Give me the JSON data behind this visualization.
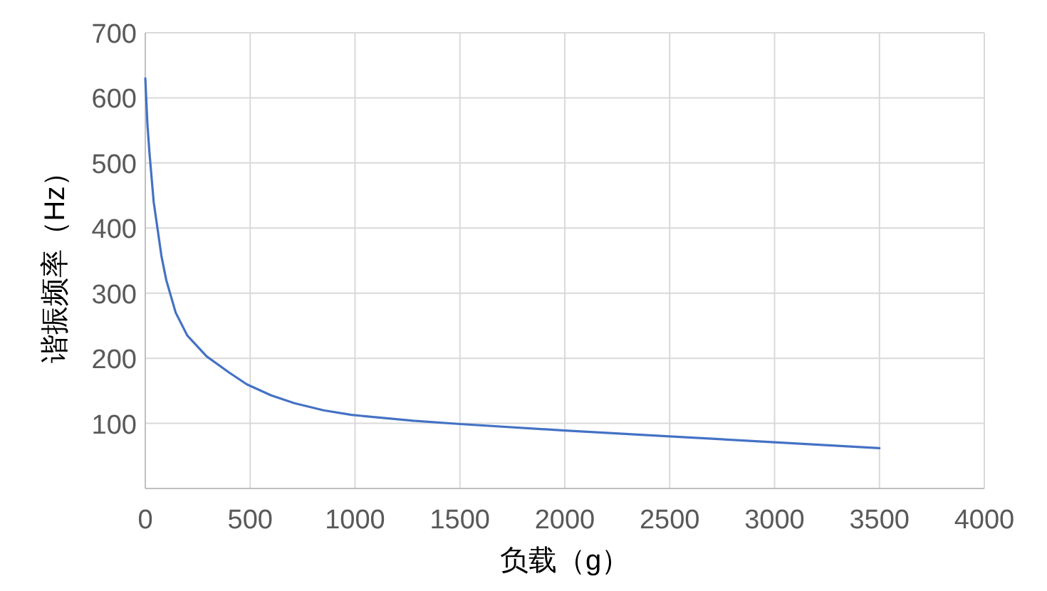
{
  "chart_data": {
    "type": "line",
    "xlabel": "负载（g）",
    "ylabel": "谐振频率（Hz）",
    "x": [
      0,
      10,
      20,
      40,
      77,
      100,
      145,
      200,
      292,
      400,
      484,
      600,
      711,
      850,
      983,
      1277,
      1500,
      2000,
      2500,
      3000,
      3500
    ],
    "series": [
      {
        "color": "#4472c4",
        "values": [
          630,
          560,
          515,
          440,
          357,
          320,
          270,
          235,
          203,
          178,
          160,
          143,
          131,
          120,
          113,
          104,
          99,
          89,
          80,
          71,
          62
        ]
      }
    ],
    "xlim": [
      0,
      4000
    ],
    "xticks": [
      0,
      500,
      1000,
      1500,
      2000,
      2500,
      3000,
      3500,
      4000
    ],
    "ylim": [
      0,
      700
    ],
    "yticks": [
      {
        "value": 0,
        "label": null
      },
      100,
      200,
      300,
      400,
      500,
      600,
      700
    ],
    "grid": true,
    "marker": "none",
    "line_style": "solid"
  }
}
